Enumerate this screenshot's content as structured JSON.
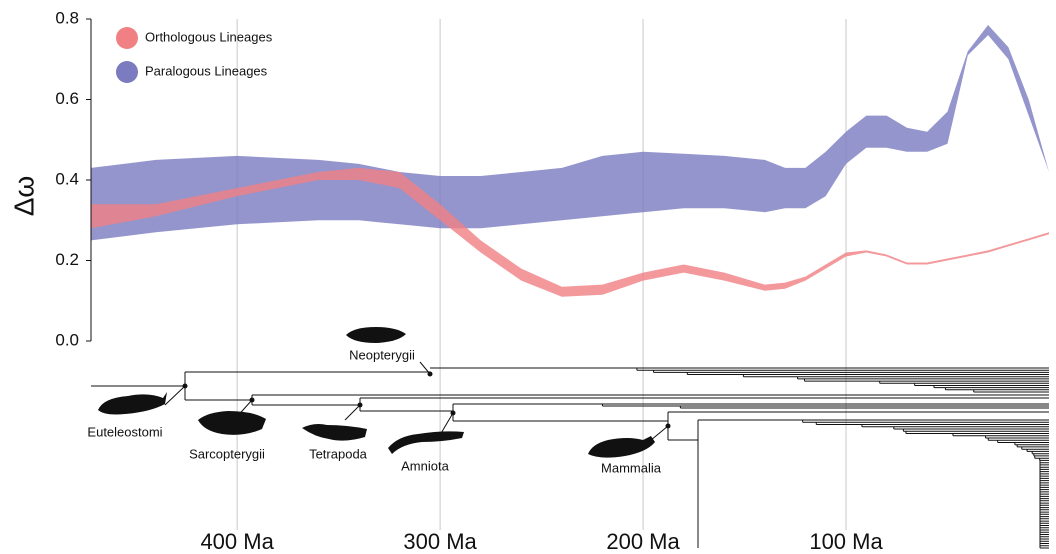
{
  "chart_data": {
    "type": "band",
    "y_label": "Δω",
    "x": [
      472,
      440,
      400,
      360,
      340,
      320,
      300,
      280,
      260,
      240,
      220,
      200,
      180,
      160,
      140,
      130,
      120,
      110,
      100,
      90,
      80,
      70,
      60,
      50,
      40,
      30,
      20,
      10,
      0
    ],
    "series": [
      {
        "name": "Paralogous Lineages",
        "color": "#7b7bc0",
        "upper": [
          0.43,
          0.45,
          0.46,
          0.45,
          0.44,
          0.42,
          0.41,
          0.41,
          0.42,
          0.43,
          0.46,
          0.47,
          0.465,
          0.46,
          0.45,
          0.43,
          0.43,
          0.47,
          0.52,
          0.56,
          0.56,
          0.53,
          0.52,
          0.57,
          0.72,
          0.785,
          0.73,
          0.6,
          0.42
        ],
        "lower": [
          0.25,
          0.27,
          0.29,
          0.3,
          0.3,
          0.29,
          0.28,
          0.28,
          0.29,
          0.3,
          0.31,
          0.32,
          0.33,
          0.33,
          0.32,
          0.33,
          0.33,
          0.36,
          0.44,
          0.48,
          0.48,
          0.47,
          0.47,
          0.49,
          0.71,
          0.76,
          0.7,
          0.56,
          0.42
        ]
      },
      {
        "name": "Orthologous Lineages",
        "color": "#f08083",
        "upper": [
          0.34,
          0.34,
          0.38,
          0.42,
          0.43,
          0.42,
          0.34,
          0.25,
          0.18,
          0.135,
          0.14,
          0.17,
          0.19,
          0.17,
          0.14,
          0.145,
          0.16,
          0.19,
          0.22,
          0.225,
          0.215,
          0.195,
          0.195,
          0.205,
          0.215,
          0.225,
          0.24,
          0.255,
          0.27
        ],
        "lower": [
          0.28,
          0.31,
          0.36,
          0.4,
          0.4,
          0.38,
          0.3,
          0.22,
          0.15,
          0.11,
          0.115,
          0.15,
          0.17,
          0.15,
          0.125,
          0.13,
          0.15,
          0.18,
          0.21,
          0.22,
          0.21,
          0.19,
          0.19,
          0.2,
          0.21,
          0.22,
          0.235,
          0.25,
          0.265
        ]
      }
    ],
    "legend_order": [
      "Orthologous Lineages",
      "Paralogous Lineages"
    ],
    "xlim": [
      472,
      0
    ],
    "ylim": [
      0,
      0.8
    ],
    "xticks": [
      {
        "value": 400,
        "label": "400 Ma"
      },
      {
        "value": 300,
        "label": "300 Ma"
      },
      {
        "value": 200,
        "label": "200 Ma"
      },
      {
        "value": 100,
        "label": "100 Ma"
      }
    ],
    "yticks": [
      {
        "value": 0,
        "label": "0.0"
      },
      0.2,
      0.4,
      0.6,
      0.8
    ],
    "grid": true,
    "legend": "upper left",
    "clades": [
      "Neopterygii",
      "Euteleostomi",
      "Sarcopterygii",
      "Tetrapoda",
      "Amniota",
      "Mammalia"
    ]
  }
}
